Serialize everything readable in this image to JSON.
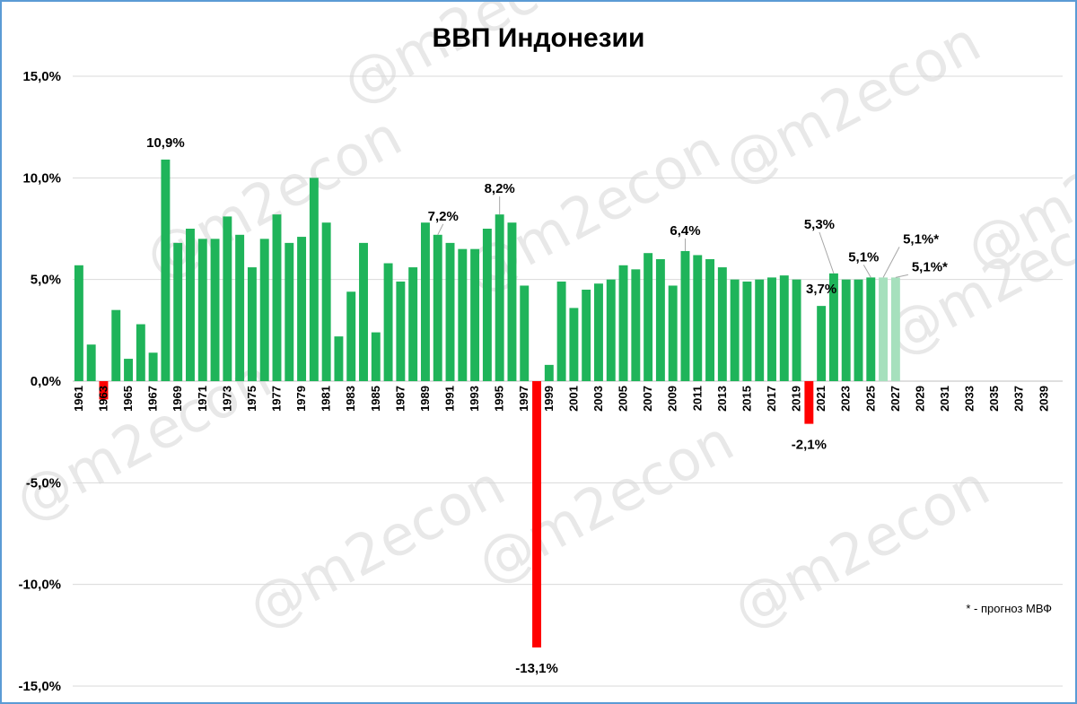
{
  "chart_data": {
    "type": "bar",
    "title": "ВВП Индонезии",
    "xlabel": "",
    "ylabel": "",
    "ylim": [
      -15,
      15
    ],
    "yticks": [
      {
        "value": 15,
        "label": "15,0%"
      },
      {
        "value": 10,
        "label": "10,0%"
      },
      {
        "value": 5,
        "label": "5,0%"
      },
      {
        "value": 0,
        "label": "0,0%"
      },
      {
        "value": -5,
        "label": "-5,0%"
      },
      {
        "value": -10,
        "label": "-10,0%"
      },
      {
        "value": -15,
        "label": "-15,0%"
      }
    ],
    "grid": true,
    "x_start": 1961,
    "x_end": 2040,
    "x_tick_labels": [
      "1961",
      "1963",
      "1965",
      "1967",
      "1969",
      "1971",
      "1973",
      "1975",
      "1977",
      "1979",
      "1981",
      "1983",
      "1985",
      "1987",
      "1989",
      "1991",
      "1993",
      "1995",
      "1997",
      "1999",
      "2001",
      "2003",
      "2005",
      "2007",
      "2009",
      "2011",
      "2013",
      "2015",
      "2017",
      "2019",
      "2021",
      "2023",
      "2025",
      "2027",
      "2029",
      "2031",
      "2033",
      "2035",
      "2037",
      "2039"
    ],
    "x": [
      1961,
      1962,
      1963,
      1964,
      1965,
      1966,
      1967,
      1968,
      1969,
      1970,
      1971,
      1972,
      1973,
      1974,
      1975,
      1976,
      1977,
      1978,
      1979,
      1980,
      1981,
      1982,
      1983,
      1984,
      1985,
      1986,
      1987,
      1988,
      1989,
      1990,
      1991,
      1992,
      1993,
      1994,
      1995,
      1996,
      1997,
      1998,
      1999,
      2000,
      2001,
      2002,
      2003,
      2004,
      2005,
      2006,
      2007,
      2008,
      2009,
      2010,
      2011,
      2012,
      2013,
      2014,
      2015,
      2016,
      2017,
      2018,
      2019,
      2020,
      2021,
      2022,
      2023,
      2024,
      2025,
      2026,
      2027
    ],
    "values": [
      5.7,
      1.8,
      -0.9,
      3.5,
      1.1,
      2.8,
      1.4,
      10.9,
      6.8,
      7.5,
      7.0,
      7.0,
      8.1,
      7.2,
      5.6,
      7.0,
      8.2,
      6.8,
      7.1,
      10.0,
      7.8,
      2.2,
      4.4,
      6.8,
      2.4,
      5.8,
      4.9,
      5.6,
      7.8,
      7.2,
      6.8,
      6.5,
      6.5,
      7.5,
      8.2,
      7.8,
      4.7,
      -13.1,
      0.8,
      4.9,
      3.6,
      4.5,
      4.8,
      5.0,
      5.7,
      5.5,
      6.3,
      6.0,
      4.7,
      6.4,
      6.2,
      6.0,
      5.6,
      5.0,
      4.9,
      5.0,
      5.1,
      5.2,
      5.0,
      -2.1,
      3.7,
      5.3,
      5.0,
      5.0,
      5.1,
      5.1,
      5.1
    ],
    "forecast_years": [
      2026,
      2027
    ],
    "data_labels": [
      {
        "x": 1968,
        "text": "10,9%"
      },
      {
        "x": 1990,
        "text": "7,2%"
      },
      {
        "x": 1995,
        "text": "8,2%"
      },
      {
        "x": 1998,
        "text": "-13,1%"
      },
      {
        "x": 2010,
        "text": "6,4%"
      },
      {
        "x": 2020,
        "text": "-2,1%"
      },
      {
        "x": 2021,
        "text": "3,7%"
      },
      {
        "x": 2022,
        "text": "5,3%"
      },
      {
        "x": 2025,
        "text": "5,1%"
      },
      {
        "x": 2026,
        "text": "5,1%*"
      },
      {
        "x": 2027,
        "text": "5,1%*"
      }
    ],
    "colors": {
      "positive": "#1fb45a",
      "negative": "#ff0000",
      "forecast": "#a6e0bd",
      "grid": "#d9d9d9",
      "frame": "#5b9bd5"
    },
    "footnote": "* - прогноз МВФ"
  },
  "watermark": "@m2econ"
}
